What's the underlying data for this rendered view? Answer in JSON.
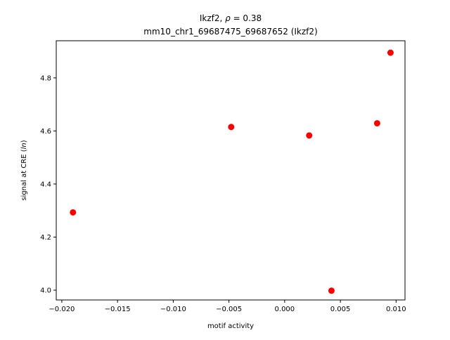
{
  "chart_data": {
    "type": "scatter",
    "title_line1_prefix": "Ikzf2, ",
    "title_line1_rho": "ρ",
    "title_line1_suffix": " = 0.38",
    "title_line2": "mm10_chr1_69687475_69687652 (Ikzf2)",
    "xlabel": "motif activity",
    "ylabel_prefix": "signal at CRE (",
    "ylabel_italic": "ln",
    "ylabel_suffix": ")",
    "xlim": [
      -0.0205,
      0.0108
    ],
    "ylim": [
      3.963,
      4.94
    ],
    "x_ticks": [
      -0.02,
      -0.015,
      -0.01,
      -0.005,
      0.0,
      0.005,
      0.01
    ],
    "x_tick_labels": [
      "−0.020",
      "−0.015",
      "−0.010",
      "−0.005",
      "0.000",
      "0.005",
      "0.010"
    ],
    "y_ticks": [
      4.0,
      4.2,
      4.4,
      4.6,
      4.8
    ],
    "y_tick_labels": [
      "4.0",
      "4.2",
      "4.4",
      "4.6",
      "4.8"
    ],
    "points": [
      {
        "x": -0.019,
        "y": 4.293
      },
      {
        "x": -0.0048,
        "y": 4.615
      },
      {
        "x": 0.0022,
        "y": 4.583
      },
      {
        "x": 0.0042,
        "y": 3.998
      },
      {
        "x": 0.0083,
        "y": 4.629
      },
      {
        "x": 0.0095,
        "y": 4.895
      }
    ],
    "marker_color": "#ff0000",
    "grid": false,
    "legend": "none"
  }
}
